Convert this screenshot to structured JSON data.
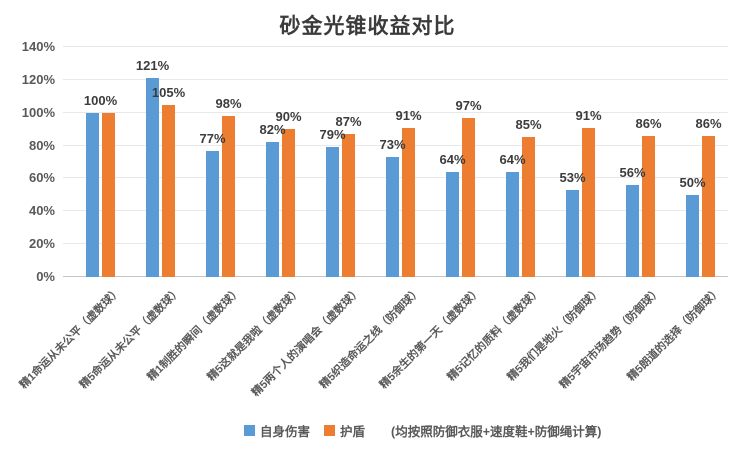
{
  "chart": {
    "title": "砂金光锥收益对比",
    "legend": {
      "series1": "自身伤害",
      "series2": "护盾",
      "note": "(均按照防御衣服+速度鞋+防御绳计算)"
    },
    "colors": {
      "blue": "#5B9BD5",
      "orange": "#ED7D31"
    }
  },
  "chart_data": {
    "type": "bar",
    "title": "砂金光锥收益对比",
    "categories": [
      "精1命运从未公平（虚数球）",
      "精5命运从未公平（虚数球）",
      "精1制胜的瞬间（虚数球）",
      "精5这就是我啦（虚数球）",
      "精5两个人的演唱会（虚数球）",
      "精5织造命运之线（防御球）",
      "精5余生的第一天（虚数球）",
      "精5记忆的质料（虚数球）",
      "精5我们是地火（防御球）",
      "精5宇宙市场趋势（防御球）",
      "精5朗道的选择（防御球）"
    ],
    "series": [
      {
        "name": "自身伤害",
        "color": "#5B9BD5",
        "values": [
          100,
          121,
          77,
          82,
          79,
          73,
          64,
          64,
          53,
          56,
          50
        ],
        "labels": [
          "100%",
          "121%",
          "77%",
          "82%",
          "79%",
          "73%",
          "64%",
          "64%",
          "53%",
          "56%",
          "50%"
        ]
      },
      {
        "name": "护盾",
        "color": "#ED7D31",
        "values": [
          100,
          105,
          98,
          90,
          87,
          91,
          97,
          85,
          91,
          86,
          86
        ],
        "labels": [
          "",
          "105%",
          "98%",
          "90%",
          "87%",
          "91%",
          "97%",
          "85%",
          "91%",
          "86%",
          "86%"
        ]
      }
    ],
    "ylim": [
      0,
      140
    ],
    "ytick_step": 20,
    "yticks": [
      "0%",
      "20%",
      "40%",
      "60%",
      "80%",
      "100%",
      "120%",
      "140%"
    ],
    "grid": true,
    "legend_position": "bottom",
    "note": "(均按照防御衣服+速度鞋+防御绳计算)"
  }
}
